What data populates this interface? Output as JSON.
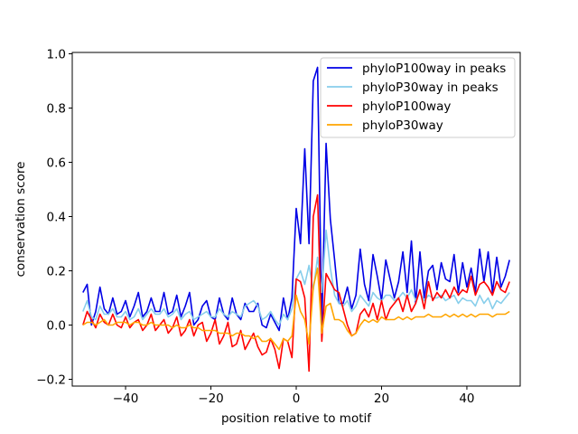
{
  "chart_data": {
    "type": "line",
    "title": "",
    "xlabel": "position relative to motif",
    "ylabel": "conservation score",
    "xlim": [
      -52.5,
      52.5
    ],
    "ylim": [
      -0.225,
      1.005
    ],
    "xticks": [
      -40,
      -20,
      0,
      20,
      40
    ],
    "xtick_labels": [
      "−40",
      "−20",
      "0",
      "20",
      "40"
    ],
    "yticks": [
      -0.2,
      0.0,
      0.2,
      0.4,
      0.6,
      0.8,
      1.0
    ],
    "ytick_labels": [
      "−0.2",
      "0.0",
      "0.2",
      "0.4",
      "0.6",
      "0.8",
      "1.0"
    ],
    "legend_position": "top-right",
    "x_start": -50,
    "x_step": 1,
    "series": [
      {
        "name": "phyloP100way in peaks",
        "color": "#0000e6",
        "values": [
          0.12,
          0.15,
          0.0,
          0.05,
          0.14,
          0.06,
          0.04,
          0.1,
          0.04,
          0.05,
          0.09,
          0.03,
          0.07,
          0.12,
          0.03,
          0.05,
          0.1,
          0.05,
          0.05,
          0.12,
          0.04,
          0.05,
          0.11,
          0.03,
          0.07,
          0.12,
          0.0,
          0.02,
          0.07,
          0.09,
          0.03,
          0.02,
          0.1,
          0.04,
          0.02,
          0.1,
          0.04,
          0.02,
          0.08,
          0.05,
          0.05,
          0.08,
          0.0,
          -0.01,
          0.04,
          0.01,
          -0.02,
          0.1,
          0.02,
          0.1,
          0.43,
          0.3,
          0.65,
          0.3,
          0.9,
          0.95,
          0.0,
          0.67,
          0.39,
          0.24,
          0.08,
          0.08,
          0.14,
          0.06,
          0.11,
          0.28,
          0.15,
          0.09,
          0.26,
          0.18,
          0.09,
          0.24,
          0.17,
          0.1,
          0.16,
          0.27,
          0.12,
          0.31,
          0.08,
          0.27,
          0.1,
          0.2,
          0.22,
          0.13,
          0.23,
          0.17,
          0.16,
          0.26,
          0.12,
          0.23,
          0.14,
          0.21,
          0.12,
          0.28,
          0.16,
          0.27,
          0.12,
          0.25,
          0.14,
          0.18,
          0.24
        ]
      },
      {
        "name": "phyloP30way in peaks",
        "color": "#87ceeb",
        "values": [
          0.05,
          0.09,
          0.03,
          0.02,
          0.07,
          0.04,
          0.04,
          0.06,
          0.03,
          0.03,
          0.05,
          0.02,
          0.03,
          0.06,
          0.02,
          0.04,
          0.06,
          0.04,
          0.04,
          0.06,
          0.03,
          0.04,
          0.06,
          0.02,
          0.04,
          0.05,
          0.02,
          0.03,
          0.04,
          0.05,
          0.03,
          0.03,
          0.06,
          0.04,
          0.03,
          0.05,
          0.04,
          0.03,
          0.07,
          0.08,
          0.09,
          0.07,
          0.02,
          0.03,
          0.05,
          0.02,
          0.0,
          0.04,
          0.02,
          0.06,
          0.17,
          0.2,
          0.15,
          0.22,
          0.13,
          0.25,
          0.12,
          0.35,
          0.21,
          0.11,
          0.08,
          0.07,
          0.09,
          0.05,
          0.07,
          0.11,
          0.09,
          0.07,
          0.12,
          0.1,
          0.09,
          0.11,
          0.11,
          0.09,
          0.1,
          0.12,
          0.1,
          0.13,
          0.09,
          0.12,
          0.09,
          0.11,
          0.1,
          0.1,
          0.11,
          0.09,
          0.1,
          0.11,
          0.08,
          0.1,
          0.09,
          0.09,
          0.07,
          0.11,
          0.08,
          0.1,
          0.06,
          0.09,
          0.08,
          0.1,
          0.12
        ]
      },
      {
        "name": "phyloP100way",
        "color": "#ff0000",
        "values": [
          0.0,
          0.05,
          0.02,
          -0.01,
          0.04,
          0.01,
          0.0,
          0.04,
          0.0,
          -0.01,
          0.03,
          -0.01,
          0.01,
          0.02,
          -0.02,
          0.0,
          0.04,
          -0.02,
          0.0,
          0.02,
          -0.03,
          -0.01,
          0.03,
          -0.04,
          -0.02,
          0.02,
          -0.04,
          0.0,
          0.01,
          -0.06,
          -0.03,
          0.02,
          -0.07,
          -0.04,
          0.01,
          -0.08,
          -0.07,
          -0.02,
          -0.09,
          -0.06,
          -0.03,
          -0.08,
          -0.11,
          -0.1,
          -0.05,
          -0.09,
          -0.16,
          -0.05,
          -0.06,
          -0.12,
          0.17,
          0.16,
          0.1,
          -0.17,
          0.4,
          0.48,
          -0.06,
          0.19,
          0.16,
          0.13,
          0.12,
          0.06,
          0.0,
          -0.04,
          -0.03,
          0.04,
          0.06,
          0.03,
          0.08,
          0.02,
          0.09,
          0.02,
          0.06,
          0.08,
          0.1,
          0.05,
          0.11,
          0.05,
          0.08,
          0.13,
          0.06,
          0.16,
          0.09,
          0.12,
          0.1,
          0.13,
          0.1,
          0.14,
          0.11,
          0.13,
          0.12,
          0.18,
          0.11,
          0.15,
          0.16,
          0.14,
          0.11,
          0.16,
          0.13,
          0.12,
          0.16
        ]
      },
      {
        "name": "phyloP30way",
        "color": "#ffa500",
        "values": [
          0.0,
          0.01,
          0.01,
          0.0,
          0.01,
          0.02,
          0.0,
          0.0,
          0.01,
          0.01,
          0.01,
          0.0,
          0.01,
          0.01,
          0.0,
          0.0,
          0.01,
          0.0,
          0.0,
          0.0,
          0.0,
          -0.01,
          0.0,
          -0.01,
          -0.01,
          0.0,
          -0.01,
          -0.01,
          -0.02,
          -0.02,
          -0.02,
          -0.02,
          -0.03,
          -0.03,
          -0.03,
          -0.04,
          -0.03,
          -0.03,
          -0.04,
          -0.04,
          -0.05,
          -0.04,
          -0.06,
          -0.06,
          -0.05,
          -0.07,
          -0.09,
          -0.05,
          -0.06,
          -0.04,
          0.11,
          0.05,
          0.02,
          -0.07,
          0.14,
          0.21,
          -0.03,
          0.07,
          0.08,
          0.02,
          0.02,
          0.01,
          -0.02,
          -0.04,
          -0.03,
          0.0,
          0.02,
          0.01,
          0.02,
          0.01,
          0.03,
          0.02,
          0.02,
          0.02,
          0.03,
          0.02,
          0.03,
          0.02,
          0.03,
          0.03,
          0.03,
          0.04,
          0.03,
          0.03,
          0.03,
          0.04,
          0.03,
          0.04,
          0.03,
          0.04,
          0.03,
          0.04,
          0.03,
          0.04,
          0.04,
          0.04,
          0.03,
          0.04,
          0.04,
          0.04,
          0.05
        ]
      }
    ]
  }
}
